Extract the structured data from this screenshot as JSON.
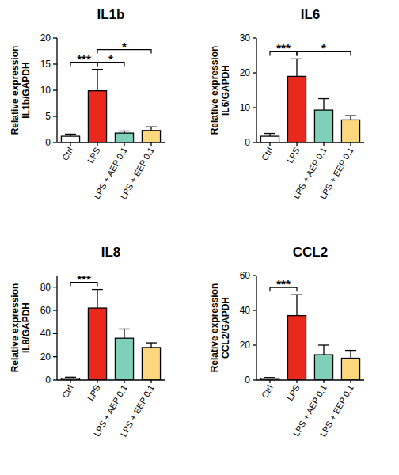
{
  "chart_data": [
    {
      "type": "bar",
      "title": "IL1b",
      "y_label": "Relative expression\nIL1b/GAPDH",
      "categories": [
        "Ctrl",
        "LPS",
        "LPS + AEP 0.1",
        "LPS + EEP 0.1"
      ],
      "values": [
        1.2,
        9.9,
        1.8,
        2.3
      ],
      "errors": [
        0.4,
        4.1,
        0.4,
        0.7
      ],
      "colors": [
        "#ffffff",
        "#e8291c",
        "#80cfb9",
        "#fcd77e"
      ],
      "ylim": [
        0,
        20
      ],
      "yticks": [
        0,
        5,
        10,
        15,
        20
      ],
      "annotations": [
        {
          "from": "Ctrl",
          "to": "LPS",
          "label": "***"
        },
        {
          "from": "LPS",
          "to": "LPS + AEP 0.1",
          "label": "*"
        },
        {
          "from": "LPS",
          "to": "LPS + EEP 0.1",
          "label": "*"
        }
      ]
    },
    {
      "type": "bar",
      "title": "IL6",
      "y_label": "Relative expression\nIL6/GAPDH",
      "categories": [
        "Ctrl",
        "LPS",
        "LPS + AEP 0.1",
        "LPS + EEP 0.1"
      ],
      "values": [
        1.8,
        19,
        9.3,
        6.5
      ],
      "errors": [
        0.8,
        5,
        3.3,
        1.2
      ],
      "colors": [
        "#ffffff",
        "#e8291c",
        "#80cfb9",
        "#fcd77e"
      ],
      "ylim": [
        0,
        30
      ],
      "yticks": [
        0,
        10,
        20,
        30
      ],
      "annotations": [
        {
          "from": "Ctrl",
          "to": "LPS",
          "label": "***"
        },
        {
          "from": "LPS",
          "to": "LPS + EEP 0.1",
          "label": "*"
        }
      ]
    },
    {
      "type": "bar",
      "title": "IL8",
      "y_label": "Relative expression\nIL8/GAPDH",
      "categories": [
        "Ctrl",
        "LPS",
        "LPS + AEP 0.1",
        "LPS + EEP 0.1"
      ],
      "values": [
        1.5,
        62,
        36,
        28
      ],
      "errors": [
        1,
        16,
        8,
        4
      ],
      "colors": [
        "#ffffff",
        "#e8291c",
        "#80cfb9",
        "#fcd77e"
      ],
      "ylim": [
        0,
        90
      ],
      "yticks": [
        0,
        20,
        40,
        60,
        80
      ],
      "annotations": [
        {
          "from": "Ctrl",
          "to": "LPS",
          "label": "***"
        }
      ]
    },
    {
      "type": "bar",
      "title": "CCL2",
      "y_label": "Relative expression\nCCL2/GAPDH",
      "categories": [
        "Ctrl",
        "LPS",
        "LPS + AEP 0.1",
        "LPS + EEP 0.1"
      ],
      "values": [
        1,
        37,
        14.5,
        12.5
      ],
      "errors": [
        0.5,
        12,
        5.5,
        4.5
      ],
      "colors": [
        "#ffffff",
        "#e8291c",
        "#80cfb9",
        "#fcd77e"
      ],
      "ylim": [
        0,
        60
      ],
      "yticks": [
        0,
        20,
        40,
        60
      ],
      "annotations": [
        {
          "from": "Ctrl",
          "to": "LPS",
          "label": "***"
        }
      ]
    }
  ]
}
